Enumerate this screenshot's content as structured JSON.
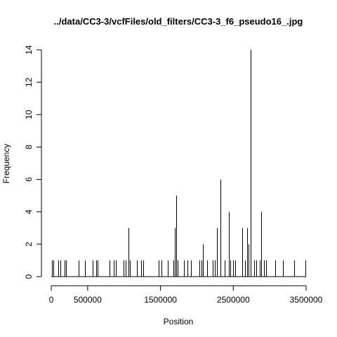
{
  "chart_data": {
    "type": "bar",
    "title": "../data/CC3-3/vcfFiles/old_filters/CC3-3_f6_pseudo16_.jpg",
    "xlabel": "Position",
    "ylabel": "Frequency",
    "xlim": [
      0,
      3500000
    ],
    "ylim": [
      0,
      14
    ],
    "x_ticks": [
      0,
      500000,
      1500000,
      2500000,
      3500000
    ],
    "x_tick_labels": [
      "0",
      "500000",
      "1500000",
      "2500000",
      "3500000"
    ],
    "y_ticks": [
      0,
      2,
      4,
      6,
      8,
      10,
      12,
      14
    ],
    "y_tick_labels": [
      "0",
      "2",
      "4",
      "6",
      "8",
      "10",
      "12",
      "14"
    ],
    "grid": false,
    "legend": "none",
    "bar_color": "#000000",
    "bars": [
      {
        "x": 10000,
        "y": 1
      },
      {
        "x": 25000,
        "y": 1
      },
      {
        "x": 95000,
        "y": 1
      },
      {
        "x": 130000,
        "y": 1
      },
      {
        "x": 185000,
        "y": 1
      },
      {
        "x": 200000,
        "y": 1
      },
      {
        "x": 380000,
        "y": 1
      },
      {
        "x": 460000,
        "y": 1
      },
      {
        "x": 570000,
        "y": 1
      },
      {
        "x": 620000,
        "y": 1
      },
      {
        "x": 640000,
        "y": 1
      },
      {
        "x": 800000,
        "y": 1
      },
      {
        "x": 860000,
        "y": 1
      },
      {
        "x": 890000,
        "y": 1
      },
      {
        "x": 990000,
        "y": 1
      },
      {
        "x": 1020000,
        "y": 1
      },
      {
        "x": 1060000,
        "y": 3
      },
      {
        "x": 1080000,
        "y": 1
      },
      {
        "x": 1180000,
        "y": 1
      },
      {
        "x": 1230000,
        "y": 1
      },
      {
        "x": 1260000,
        "y": 1
      },
      {
        "x": 1480000,
        "y": 1
      },
      {
        "x": 1510000,
        "y": 1
      },
      {
        "x": 1600000,
        "y": 1
      },
      {
        "x": 1680000,
        "y": 1
      },
      {
        "x": 1700000,
        "y": 3
      },
      {
        "x": 1720000,
        "y": 5
      },
      {
        "x": 1740000,
        "y": 1
      },
      {
        "x": 1820000,
        "y": 1
      },
      {
        "x": 1870000,
        "y": 1
      },
      {
        "x": 1920000,
        "y": 1
      },
      {
        "x": 2030000,
        "y": 1
      },
      {
        "x": 2060000,
        "y": 1
      },
      {
        "x": 2080000,
        "y": 2
      },
      {
        "x": 2140000,
        "y": 1
      },
      {
        "x": 2220000,
        "y": 1
      },
      {
        "x": 2250000,
        "y": 1
      },
      {
        "x": 2280000,
        "y": 3
      },
      {
        "x": 2320000,
        "y": 6
      },
      {
        "x": 2380000,
        "y": 1
      },
      {
        "x": 2440000,
        "y": 4
      },
      {
        "x": 2460000,
        "y": 1
      },
      {
        "x": 2500000,
        "y": 1
      },
      {
        "x": 2530000,
        "y": 1
      },
      {
        "x": 2620000,
        "y": 3
      },
      {
        "x": 2660000,
        "y": 1
      },
      {
        "x": 2690000,
        "y": 3
      },
      {
        "x": 2710000,
        "y": 2
      },
      {
        "x": 2740000,
        "y": 14
      },
      {
        "x": 2790000,
        "y": 1
      },
      {
        "x": 2820000,
        "y": 1
      },
      {
        "x": 2860000,
        "y": 1
      },
      {
        "x": 2880000,
        "y": 4
      },
      {
        "x": 2920000,
        "y": 1
      },
      {
        "x": 2950000,
        "y": 1
      },
      {
        "x": 3080000,
        "y": 1
      },
      {
        "x": 3180000,
        "y": 1
      },
      {
        "x": 3340000,
        "y": 1
      },
      {
        "x": 3490000,
        "y": 1
      }
    ]
  }
}
